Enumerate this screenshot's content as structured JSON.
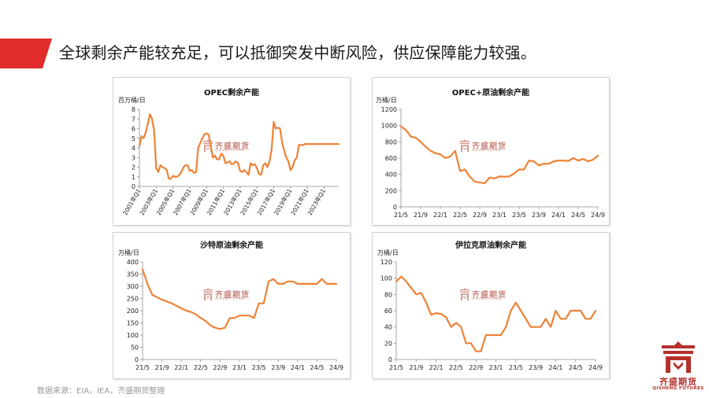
{
  "slide": {
    "headline": "全球剩余产能较充足，可以抵御突发中断风险，供应保障能力较强。",
    "source": "数据来源：EIA，IEA，齐盛期货整理",
    "accent_color": "#e22b2b",
    "line_color": "#ee8236",
    "logo": {
      "cn": "齐盛期货",
      "en": "QISHENG FUTURES",
      "icon": "qisheng-logo-icon"
    },
    "watermark": {
      "cn": "齐盛期货",
      "en": "QISHENG FUTURES"
    }
  },
  "chart_data": [
    {
      "type": "line",
      "title": "OPEC剩余产能",
      "ylabel": "百万桶/日",
      "ylim": [
        0,
        8
      ],
      "yticks": [
        0,
        1,
        2,
        3,
        4,
        5,
        6,
        7,
        8
      ],
      "xlim": [
        0,
        95
      ],
      "xtick_labels": [
        "2001年Q1",
        "2003年Q1",
        "2005年Q1",
        "2007年Q1",
        "2009年Q1",
        "2011年Q1",
        "2013年Q1",
        "2015年Q1",
        "2017年Q1",
        "2019年Q1",
        "2021年Q1",
        "2023年Q1"
      ],
      "xtick_positions": [
        0,
        8,
        16,
        24,
        32,
        40,
        48,
        56,
        64,
        72,
        80,
        88
      ],
      "grid": false,
      "series": [
        {
          "x": [
            0,
            1,
            2,
            3,
            4,
            5,
            6,
            7,
            8,
            9,
            10,
            11,
            12,
            13,
            14,
            15,
            16,
            17,
            18,
            19,
            20,
            21,
            22,
            23,
            24,
            25,
            26,
            27,
            28,
            29,
            30,
            31,
            32,
            33,
            34,
            35,
            36,
            37,
            38,
            39,
            40,
            41,
            42,
            43,
            44,
            45,
            46,
            47,
            48,
            49,
            50,
            51,
            52,
            53,
            54,
            55,
            56,
            57,
            58,
            59,
            60,
            61,
            62,
            63,
            64,
            65,
            66,
            67,
            68,
            69,
            70,
            71,
            72,
            73,
            74,
            75,
            76,
            77,
            78,
            79,
            80,
            81,
            82,
            83,
            84,
            85,
            86,
            87,
            88,
            89,
            90,
            91,
            92,
            93,
            94,
            95
          ],
          "values": [
            4.2,
            5.2,
            5.0,
            5.6,
            6.5,
            7.5,
            7.0,
            5.8,
            1.9,
            1.5,
            2.2,
            2.0,
            1.9,
            1.7,
            0.8,
            0.8,
            1.1,
            1.0,
            1.0,
            1.2,
            1.5,
            2.0,
            2.2,
            2.2,
            1.6,
            1.7,
            1.4,
            1.5,
            4.0,
            4.5,
            5.0,
            5.4,
            5.5,
            5.4,
            4.2,
            3.0,
            3.2,
            2.8,
            2.8,
            3.4,
            3.2,
            2.4,
            2.5,
            2.6,
            2.3,
            2.4,
            2.6,
            2.4,
            1.6,
            1.5,
            1.7,
            1.5,
            1.2,
            2.4,
            2.2,
            2.3,
            1.9,
            1.3,
            1.2,
            2.2,
            2.4,
            2.0,
            2.6,
            3.8,
            6.7,
            6.0,
            6.1,
            6.0,
            4.6,
            3.7,
            3.0,
            2.6,
            1.7,
            2.0,
            2.7,
            3.0,
            4.3,
            4.3,
            4.3,
            4.4,
            4.4,
            4.4,
            4.4,
            4.4,
            4.4,
            4.4,
            4.4,
            4.4,
            4.4,
            4.4,
            4.4,
            4.4,
            4.4,
            4.4,
            4.4,
            4.4
          ]
        }
      ]
    },
    {
      "type": "line",
      "title": "OPEC+原油剩余产能",
      "ylabel": "万桶/日",
      "ylim": [
        0,
        1200
      ],
      "yticks": [
        0,
        200,
        400,
        600,
        800,
        1000,
        1200
      ],
      "xlim": [
        0,
        40
      ],
      "xtick_labels": [
        "21/5",
        "21/9",
        "22/1",
        "22/5",
        "22/9",
        "23/1",
        "23/5",
        "23/9",
        "24/1",
        "24/5",
        "24/9"
      ],
      "xtick_positions": [
        0,
        4,
        8,
        12,
        16,
        20,
        24,
        28,
        32,
        36,
        40
      ],
      "grid": false,
      "series": [
        {
          "x": [
            0,
            1,
            2,
            3,
            4,
            5,
            6,
            7,
            8,
            9,
            10,
            11,
            12,
            13,
            14,
            15,
            16,
            17,
            18,
            19,
            20,
            21,
            22,
            23,
            24,
            25,
            26,
            27,
            28,
            29,
            30,
            31,
            32,
            33,
            34,
            35,
            36,
            37,
            38,
            39,
            40
          ],
          "values": [
            990,
            945,
            865,
            850,
            800,
            740,
            690,
            660,
            645,
            600,
            620,
            690,
            440,
            460,
            370,
            310,
            300,
            290,
            360,
            350,
            375,
            370,
            375,
            410,
            460,
            460,
            570,
            560,
            510,
            530,
            530,
            560,
            570,
            570,
            565,
            600,
            570,
            590,
            560,
            580,
            630
          ]
        }
      ]
    },
    {
      "type": "line",
      "title": "沙特原油剩余产能",
      "ylabel": "万桶/日",
      "ylim": [
        0,
        400
      ],
      "yticks": [
        0,
        50,
        100,
        150,
        200,
        250,
        300,
        350,
        400
      ],
      "xlim": [
        0,
        40
      ],
      "xtick_labels": [
        "21/5",
        "21/9",
        "22/1",
        "22/5",
        "22/9",
        "23/1",
        "23/5",
        "23/9",
        "24/1",
        "24/5",
        "24/9"
      ],
      "xtick_positions": [
        0,
        4,
        8,
        12,
        16,
        20,
        24,
        28,
        32,
        36,
        40
      ],
      "grid": false,
      "series": [
        {
          "x": [
            0,
            1,
            2,
            3,
            4,
            5,
            6,
            7,
            8,
            9,
            10,
            11,
            12,
            13,
            14,
            15,
            16,
            17,
            18,
            19,
            20,
            21,
            22,
            23,
            24,
            25,
            26,
            27,
            28,
            29,
            30,
            31,
            32,
            33,
            34,
            35,
            36,
            37,
            38,
            39,
            40
          ],
          "values": [
            370,
            310,
            265,
            255,
            245,
            238,
            230,
            220,
            210,
            200,
            195,
            185,
            170,
            158,
            140,
            130,
            125,
            130,
            170,
            170,
            180,
            180,
            180,
            170,
            230,
            230,
            320,
            330,
            310,
            310,
            320,
            320,
            310,
            310,
            310,
            310,
            310,
            330,
            310,
            310,
            310
          ]
        }
      ]
    },
    {
      "type": "line",
      "title": "伊拉克原油剩余产能",
      "ylabel": "万桶/日",
      "ylim": [
        0,
        120
      ],
      "yticks": [
        0,
        20,
        40,
        60,
        80,
        100,
        120
      ],
      "xlim": [
        0,
        40
      ],
      "xtick_labels": [
        "21/5",
        "21/9",
        "22/1",
        "22/5",
        "22/9",
        "23/1",
        "23/5",
        "23/9",
        "24/1",
        "24/5",
        "24/9"
      ],
      "xtick_positions": [
        0,
        4,
        8,
        12,
        16,
        20,
        24,
        28,
        32,
        36,
        40
      ],
      "grid": false,
      "series": [
        {
          "x": [
            0,
            1,
            2,
            3,
            4,
            5,
            6,
            7,
            8,
            9,
            10,
            11,
            12,
            13,
            14,
            15,
            16,
            17,
            18,
            19,
            20,
            21,
            22,
            23,
            24,
            25,
            26,
            27,
            28,
            29,
            30,
            31,
            32,
            33,
            34,
            35,
            36,
            37,
            38,
            39,
            40
          ],
          "values": [
            96,
            102,
            96,
            88,
            80,
            82,
            70,
            55,
            57,
            56,
            52,
            40,
            45,
            40,
            20,
            20,
            10,
            10,
            30,
            30,
            30,
            30,
            40,
            60,
            70,
            60,
            50,
            40,
            40,
            40,
            50,
            40,
            60,
            50,
            50,
            60,
            60,
            60,
            50,
            50,
            60
          ]
        }
      ]
    }
  ]
}
